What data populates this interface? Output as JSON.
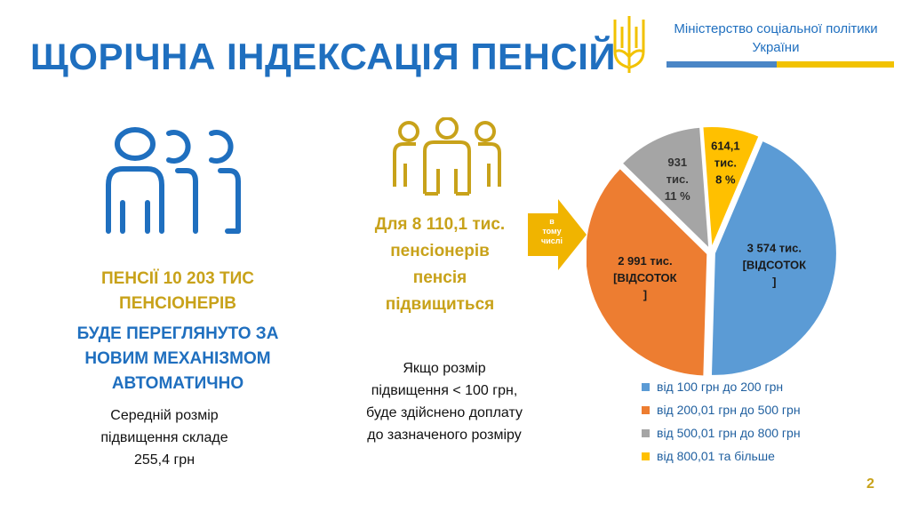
{
  "slide": {
    "title": "ЩОРІЧНА ІНДЕКСАЦІЯ ПЕНСІЙ",
    "ministry_line1": "Міністерство соціальної політики",
    "ministry_line2": "України",
    "page_number": "2"
  },
  "left": {
    "line1": "ПЕНСІЇ 10 203 ТИС",
    "line2": "ПЕНСІОНЕРІВ",
    "line3": "БУДЕ ПЕРЕГЛЯНУТО ЗА",
    "line4": "НОВИМ МЕХАНІЗМОМ",
    "line5": "АВТОМАТИЧНО",
    "avg_line1": "Середній розмір",
    "avg_line2": "підвищення складе",
    "avg_line3": "255,4  грн"
  },
  "middle": {
    "line1": "Для 8 110,1 тис.",
    "line2": "пенсіонерів",
    "line3": "пенсія",
    "line4": "підвищиться",
    "note_line1": "Якщо розмір",
    "note_line2": "підвищення < 100 грн,",
    "note_line3": "буде здійснено доплату",
    "note_line4": "до зазначеного розміру"
  },
  "arrow": {
    "line1": "в",
    "line2": "тому",
    "line3": "числі"
  },
  "colors": {
    "title_blue": "#1f6fbf",
    "gold": "#c8a21a"
  },
  "icons": {
    "left": "people-group-icon",
    "middle": "people-group-icon",
    "emblem": "trident-emblem-icon",
    "arrow": "arrow-right-icon"
  },
  "chart_data": {
    "type": "pie",
    "categories": [
      "від 100 грн до 200 грн",
      "від 200,01 грн до 500 грн",
      "від 500,01 грн до 800 грн",
      "від 800,01 та більше"
    ],
    "values": [
      3574,
      2991,
      931,
      614.1
    ],
    "colors": [
      "#5b9bd5",
      "#ed7d31",
      "#a5a5a5",
      "#ffc000"
    ],
    "labels": [
      {
        "l1": "3 574  тис.",
        "l2": "[ВІДСОТОК",
        "l3": "]"
      },
      {
        "l1": "2 991 тис.",
        "l2": "[ВІДСОТОК",
        "l3": "]"
      },
      {
        "l1": "931",
        "l2": "тис.",
        "l3": "11 %"
      },
      {
        "l1": "614,1",
        "l2": "тис.",
        "l3": "8 %"
      }
    ],
    "legend_position": "bottom"
  }
}
